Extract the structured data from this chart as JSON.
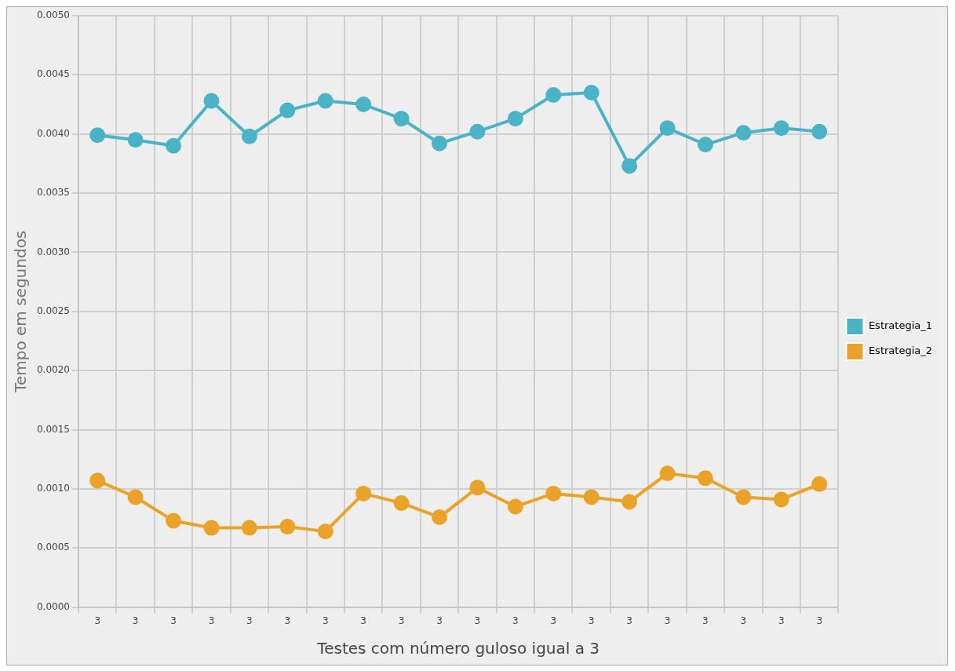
{
  "chart_data": {
    "type": "line",
    "xlabel": "Testes com número guloso igual a 3",
    "ylabel": "Tempo em segundos",
    "categories": [
      "3",
      "3",
      "3",
      "3",
      "3",
      "3",
      "3",
      "3",
      "3",
      "3",
      "3",
      "3",
      "3",
      "3",
      "3",
      "3",
      "3",
      "3",
      "3",
      "3"
    ],
    "series": [
      {
        "name": "Estrategia_1",
        "color": "#4ab3c6",
        "values": [
          0.00399,
          0.00395,
          0.0039,
          0.00428,
          0.00398,
          0.0042,
          0.00428,
          0.00425,
          0.00413,
          0.00392,
          0.00402,
          0.00413,
          0.00433,
          0.00435,
          0.00373,
          0.00405,
          0.00391,
          0.00401,
          0.00405,
          0.00402
        ]
      },
      {
        "name": "Estrategia_2",
        "color": "#eaa229",
        "values": [
          0.00107,
          0.00093,
          0.00073,
          0.00067,
          0.00067,
          0.00068,
          0.00064,
          0.00096,
          0.00088,
          0.00076,
          0.00101,
          0.00085,
          0.00096,
          0.00093,
          0.00089,
          0.00113,
          0.00109,
          0.00093,
          0.00091,
          0.00104
        ]
      }
    ],
    "ylim": [
      0,
      0.005
    ],
    "yticks": [
      {
        "value": 0,
        "label": "0.0000"
      },
      {
        "value": 0.0005,
        "label": "0.0005"
      },
      {
        "value": 0.001,
        "label": "0.0010"
      },
      {
        "value": 0.0015,
        "label": "0.0015"
      },
      {
        "value": 0.002,
        "label": "0.0020"
      },
      {
        "value": 0.0025,
        "label": "0.0025"
      },
      {
        "value": 0.003,
        "label": "0.0030"
      },
      {
        "value": 0.0035,
        "label": "0.0035"
      },
      {
        "value": 0.004,
        "label": "0.0040"
      },
      {
        "value": 0.0045,
        "label": "0.0045"
      },
      {
        "value": 0.005,
        "label": "0.0050"
      }
    ],
    "grid": true,
    "legend": "right",
    "marker": "circle",
    "line_style": "solid"
  }
}
